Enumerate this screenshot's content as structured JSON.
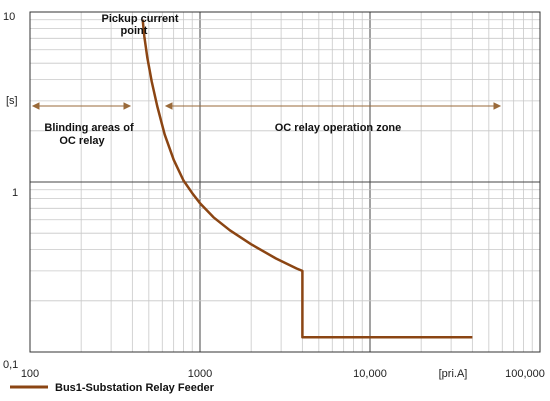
{
  "chart_data": {
    "type": "line",
    "x_scale": "log",
    "y_scale": "log",
    "xlim": [
      100,
      100000
    ],
    "ylim": [
      0.1,
      10
    ],
    "grid": true,
    "x_unit_label": "[pri.A]",
    "y_unit_label": "[s]",
    "x_tick_labels": [
      {
        "value": 100,
        "label": "100"
      },
      {
        "value": 1000,
        "label": "1000"
      },
      {
        "value": 10000,
        "label": "10,000"
      },
      {
        "value": 100000,
        "label": "100,000"
      }
    ],
    "y_tick_labels": [
      {
        "value": 10,
        "label": "10"
      },
      {
        "value": 1,
        "label": "1"
      },
      {
        "value": 0.1,
        "label": "0,1"
      }
    ],
    "legend_position": "bottom-left",
    "series": [
      {
        "name": "Bus1-Substation Relay Feeder",
        "color": "#8b4513",
        "points": [
          [
            460,
            9.0
          ],
          [
            470,
            7.2
          ],
          [
            490,
            5.4
          ],
          [
            520,
            3.9
          ],
          [
            560,
            2.8
          ],
          [
            620,
            1.9
          ],
          [
            700,
            1.35
          ],
          [
            800,
            1.02
          ],
          [
            900,
            0.86
          ],
          [
            1000,
            0.75
          ],
          [
            1200,
            0.62
          ],
          [
            1500,
            0.52
          ],
          [
            2000,
            0.43
          ],
          [
            2800,
            0.355
          ],
          [
            3700,
            0.31
          ],
          [
            4000,
            0.3
          ],
          [
            4000,
            0.122
          ],
          [
            40000,
            0.122
          ]
        ]
      }
    ],
    "annotations": {
      "pickup": [
        "Pickup current",
        "point"
      ],
      "blinding": [
        "Blinding areas of",
        "OC relay"
      ],
      "operation": "OC relay operation zone"
    }
  }
}
